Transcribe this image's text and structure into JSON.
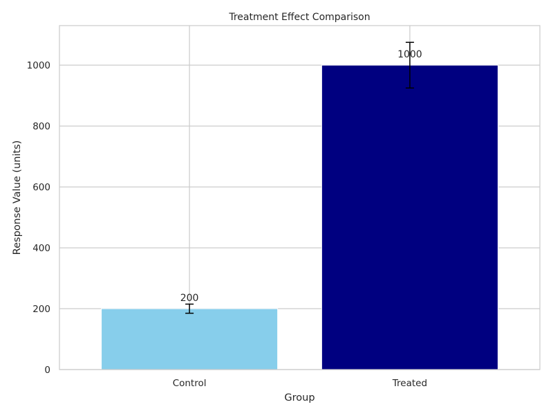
{
  "chart_data": {
    "type": "bar",
    "title": "Treatment Effect Comparison",
    "xlabel": "Group",
    "ylabel": "Response Value (units)",
    "categories": [
      "Control",
      "Treated"
    ],
    "values": [
      200,
      1000
    ],
    "errors": [
      15,
      75
    ],
    "value_labels": [
      "200",
      "1000"
    ],
    "colors": [
      "#87CEEB",
      "#000080"
    ],
    "ylim": [
      0,
      1130
    ],
    "yticks": [
      0,
      200,
      400,
      600,
      800,
      1000
    ],
    "ytick_labels": [
      "0",
      "200",
      "400",
      "600",
      "800",
      "1000"
    ],
    "grid": true
  }
}
